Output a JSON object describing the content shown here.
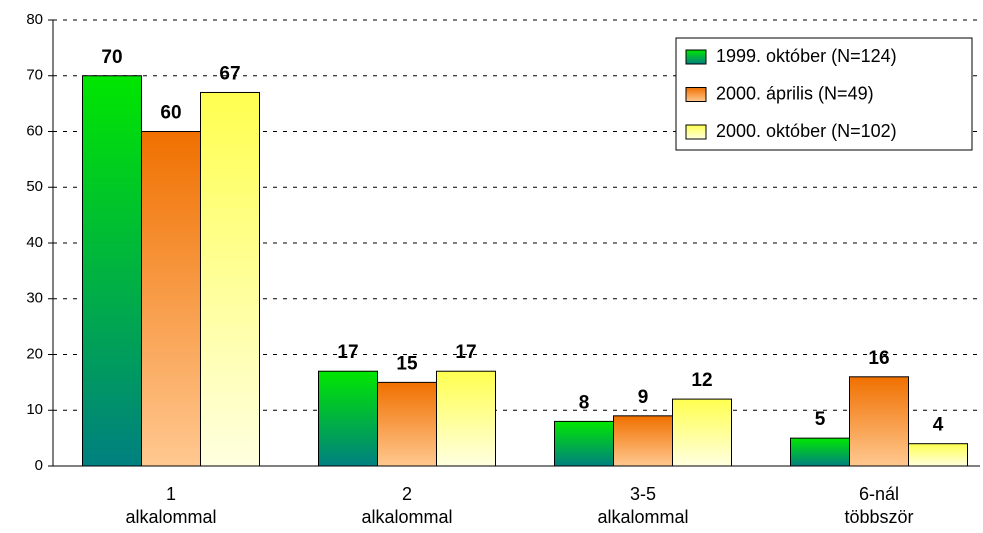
{
  "chart_data": {
    "type": "bar",
    "categories": [
      [
        "1",
        "alkalommal"
      ],
      [
        "2",
        "alkalommal"
      ],
      [
        "3-5",
        "alkalommal"
      ],
      [
        "6-nál",
        "többször"
      ]
    ],
    "series": [
      {
        "name": "1999. október (N=124)",
        "color": "#00e600",
        "values": [
          70,
          17,
          8,
          5
        ]
      },
      {
        "name": "2000. április (N=49)",
        "color": "#f07000",
        "values": [
          60,
          15,
          9,
          16
        ]
      },
      {
        "name": "2000. október (N=102)",
        "color": "#ffff50",
        "values": [
          67,
          17,
          12,
          4
        ]
      }
    ],
    "ylim": [
      0,
      80
    ],
    "yticks": [
      0,
      10,
      20,
      30,
      40,
      50,
      60,
      70,
      80
    ],
    "grid": true,
    "legend": "top-right"
  }
}
